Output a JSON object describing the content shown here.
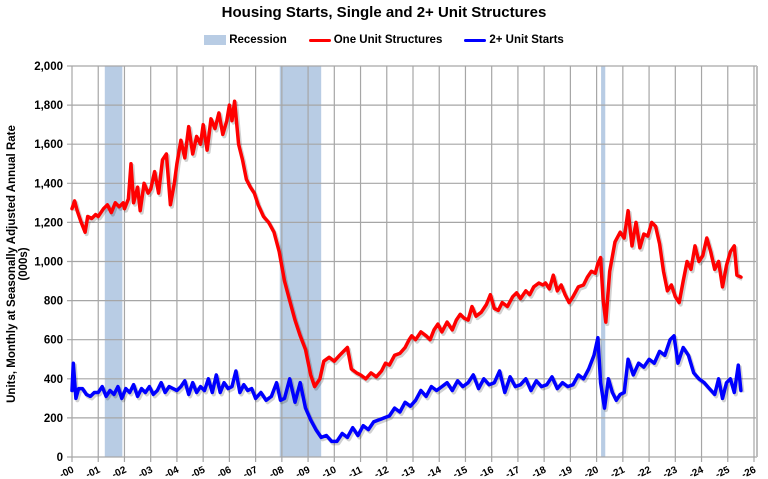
{
  "chart_data": {
    "type": "line",
    "title": "Housing Starts, Single and 2+ Unit Structures",
    "xlabel": "",
    "ylabel": "Units, Monthly at Seasonally Adjusted Annual Rate (000s)",
    "ylim": [
      0,
      2000
    ],
    "yticks": [
      0,
      200,
      400,
      600,
      800,
      1000,
      1200,
      1400,
      1600,
      1800,
      2000
    ],
    "ytick_labels": [
      "0",
      "200",
      "400",
      "600",
      "800",
      "1,000",
      "1,200",
      "1,400",
      "1,600",
      "1,800",
      "2,000"
    ],
    "xlim": [
      2000,
      2026
    ],
    "xtick_labels": [
      "-00",
      "-01",
      "-02",
      "-03",
      "-04",
      "-05",
      "-06",
      "-07",
      "-08",
      "-09",
      "-10",
      "-11",
      "-12",
      "-13",
      "-14",
      "-15",
      "-16",
      "-17",
      "-18",
      "-19",
      "-20",
      "-21",
      "-22",
      "-23",
      "-24",
      "-25",
      "-26"
    ],
    "grid": true,
    "legend_position": "top",
    "legend": [
      {
        "name": "Recession",
        "kind": "band",
        "color": "#b8cce4"
      },
      {
        "name": "One Unit Structures",
        "kind": "line",
        "color": "#ff0000"
      },
      {
        "name": "2+ Unit Starts",
        "kind": "line",
        "color": "#0000ff"
      }
    ],
    "recessions": [
      [
        2001.25,
        2001.92
      ],
      [
        2007.92,
        2009.5
      ],
      [
        2020.17,
        2020.33
      ]
    ],
    "series": [
      {
        "name": "One Unit Structures",
        "color": "#ff0000",
        "x": [
          2000.0,
          2000.1,
          2000.2,
          2000.35,
          2000.5,
          2000.6,
          2000.75,
          2000.9,
          2001.0,
          2001.2,
          2001.35,
          2001.5,
          2001.65,
          2001.8,
          2001.95,
          2002.0,
          2002.15,
          2002.25,
          2002.35,
          2002.5,
          2002.6,
          2002.75,
          2002.9,
          2003.0,
          2003.15,
          2003.3,
          2003.45,
          2003.6,
          2003.75,
          2003.9,
          2004.0,
          2004.15,
          2004.3,
          2004.45,
          2004.6,
          2004.75,
          2004.9,
          2005.0,
          2005.15,
          2005.3,
          2005.45,
          2005.6,
          2005.75,
          2005.9,
          2006.0,
          2006.1,
          2006.2,
          2006.35,
          2006.5,
          2006.65,
          2006.8,
          2006.95,
          2007.1,
          2007.3,
          2007.5,
          2007.7,
          2007.9,
          2008.1,
          2008.3,
          2008.5,
          2008.7,
          2008.9,
          2009.1,
          2009.25,
          2009.45,
          2009.6,
          2009.8,
          2010.0,
          2010.2,
          2010.35,
          2010.5,
          2010.65,
          2010.85,
          2011.0,
          2011.2,
          2011.4,
          2011.6,
          2011.8,
          2011.95,
          2012.1,
          2012.3,
          2012.5,
          2012.7,
          2012.85,
          2012.95,
          2013.1,
          2013.3,
          2013.5,
          2013.65,
          2013.8,
          2013.95,
          2014.1,
          2014.3,
          2014.5,
          2014.65,
          2014.8,
          2014.95,
          2015.1,
          2015.25,
          2015.4,
          2015.6,
          2015.8,
          2015.95,
          2016.1,
          2016.25,
          2016.4,
          2016.6,
          2016.8,
          2016.95,
          2017.1,
          2017.3,
          2017.45,
          2017.6,
          2017.8,
          2017.95,
          2018.05,
          2018.2,
          2018.35,
          2018.5,
          2018.65,
          2018.8,
          2018.95,
          2019.1,
          2019.3,
          2019.5,
          2019.65,
          2019.8,
          2019.95,
          2020.05,
          2020.15,
          2020.25,
          2020.35,
          2020.5,
          2020.7,
          2020.9,
          2021.05,
          2021.2,
          2021.35,
          2021.5,
          2021.65,
          2021.8,
          2021.95,
          2022.1,
          2022.25,
          2022.4,
          2022.55,
          2022.7,
          2022.85,
          2023.0,
          2023.15,
          2023.3,
          2023.45,
          2023.6,
          2023.75,
          2023.9,
          2024.05,
          2024.2,
          2024.35,
          2024.5,
          2024.65,
          2024.8,
          2024.95,
          2025.1,
          2025.25,
          2025.35,
          2025.5
        ],
        "values": [
          1270,
          1310,
          1260,
          1200,
          1150,
          1230,
          1220,
          1240,
          1230,
          1270,
          1290,
          1250,
          1300,
          1280,
          1300,
          1270,
          1320,
          1500,
          1300,
          1380,
          1260,
          1400,
          1350,
          1370,
          1460,
          1350,
          1520,
          1550,
          1290,
          1400,
          1500,
          1620,
          1530,
          1690,
          1550,
          1640,
          1600,
          1700,
          1570,
          1730,
          1680,
          1760,
          1650,
          1720,
          1800,
          1720,
          1820,
          1600,
          1520,
          1420,
          1380,
          1350,
          1290,
          1230,
          1200,
          1150,
          1050,
          900,
          800,
          700,
          620,
          550,
          420,
          360,
          400,
          490,
          510,
          490,
          520,
          540,
          560,
          450,
          430,
          420,
          400,
          430,
          410,
          440,
          480,
          470,
          520,
          530,
          560,
          600,
          620,
          600,
          640,
          620,
          600,
          650,
          680,
          640,
          690,
          650,
          700,
          730,
          710,
          700,
          770,
          720,
          740,
          780,
          830,
          760,
          750,
          790,
          770,
          820,
          840,
          810,
          850,
          830,
          870,
          890,
          880,
          890,
          860,
          930,
          850,
          880,
          830,
          790,
          820,
          870,
          880,
          920,
          950,
          940,
          990,
          1020,
          800,
          690,
          950,
          1100,
          1150,
          1120,
          1260,
          1080,
          1200,
          1070,
          1140,
          1130,
          1200,
          1180,
          1090,
          950,
          850,
          880,
          820,
          790,
          900,
          1000,
          960,
          1080,
          1000,
          1030,
          1120,
          1050,
          960,
          1000,
          870,
          980,
          1050,
          1080,
          930,
          920
        ]
      },
      {
        "name": "2+ Unit Starts",
        "color": "#0000ff",
        "x": [
          2000.0,
          2000.05,
          2000.15,
          2000.25,
          2000.4,
          2000.55,
          2000.7,
          2000.85,
          2001.0,
          2001.15,
          2001.3,
          2001.45,
          2001.6,
          2001.75,
          2001.9,
          2002.05,
          2002.2,
          2002.35,
          2002.5,
          2002.65,
          2002.8,
          2002.95,
          2003.1,
          2003.25,
          2003.4,
          2003.55,
          2003.7,
          2003.85,
          2004.0,
          2004.15,
          2004.3,
          2004.45,
          2004.6,
          2004.75,
          2004.9,
          2005.05,
          2005.2,
          2005.35,
          2005.5,
          2005.65,
          2005.8,
          2005.95,
          2006.1,
          2006.25,
          2006.4,
          2006.55,
          2006.7,
          2006.85,
          2007.0,
          2007.2,
          2007.4,
          2007.6,
          2007.8,
          2007.95,
          2008.1,
          2008.3,
          2008.5,
          2008.7,
          2008.9,
          2009.1,
          2009.3,
          2009.5,
          2009.7,
          2009.9,
          2010.1,
          2010.3,
          2010.5,
          2010.7,
          2010.9,
          2011.1,
          2011.3,
          2011.5,
          2011.7,
          2011.9,
          2012.1,
          2012.3,
          2012.5,
          2012.7,
          2012.9,
          2013.1,
          2013.3,
          2013.5,
          2013.7,
          2013.9,
          2014.1,
          2014.3,
          2014.5,
          2014.7,
          2014.9,
          2015.1,
          2015.3,
          2015.5,
          2015.7,
          2015.9,
          2016.1,
          2016.3,
          2016.5,
          2016.7,
          2016.9,
          2017.1,
          2017.3,
          2017.5,
          2017.7,
          2017.9,
          2018.1,
          2018.3,
          2018.5,
          2018.7,
          2018.9,
          2019.1,
          2019.3,
          2019.5,
          2019.7,
          2019.9,
          2020.05,
          2020.15,
          2020.3,
          2020.45,
          2020.6,
          2020.75,
          2020.9,
          2021.05,
          2021.2,
          2021.4,
          2021.6,
          2021.8,
          2022.0,
          2022.2,
          2022.4,
          2022.6,
          2022.8,
          2022.95,
          2023.1,
          2023.3,
          2023.5,
          2023.7,
          2023.9,
          2024.1,
          2024.3,
          2024.5,
          2024.65,
          2024.8,
          2024.95,
          2025.1,
          2025.25,
          2025.4,
          2025.5
        ],
        "values": [
          340,
          480,
          300,
          350,
          350,
          320,
          310,
          330,
          330,
          360,
          310,
          340,
          320,
          360,
          300,
          350,
          330,
          370,
          310,
          350,
          330,
          360,
          320,
          340,
          380,
          330,
          360,
          350,
          340,
          360,
          390,
          320,
          380,
          330,
          360,
          340,
          400,
          330,
          420,
          330,
          380,
          350,
          360,
          440,
          330,
          370,
          340,
          350,
          300,
          330,
          290,
          310,
          380,
          290,
          300,
          400,
          280,
          380,
          250,
          190,
          140,
          100,
          110,
          80,
          80,
          120,
          100,
          150,
          110,
          160,
          140,
          180,
          190,
          200,
          210,
          250,
          230,
          280,
          260,
          290,
          340,
          310,
          360,
          340,
          360,
          380,
          340,
          390,
          360,
          380,
          420,
          350,
          400,
          370,
          380,
          440,
          330,
          410,
          360,
          370,
          400,
          340,
          390,
          360,
          370,
          410,
          350,
          380,
          360,
          370,
          420,
          400,
          450,
          520,
          610,
          380,
          250,
          400,
          330,
          290,
          320,
          330,
          500,
          420,
          480,
          460,
          500,
          480,
          540,
          520,
          600,
          620,
          480,
          560,
          520,
          430,
          400,
          380,
          350,
          320,
          400,
          300,
          380,
          400,
          330,
          470,
          340
        ]
      }
    ]
  }
}
